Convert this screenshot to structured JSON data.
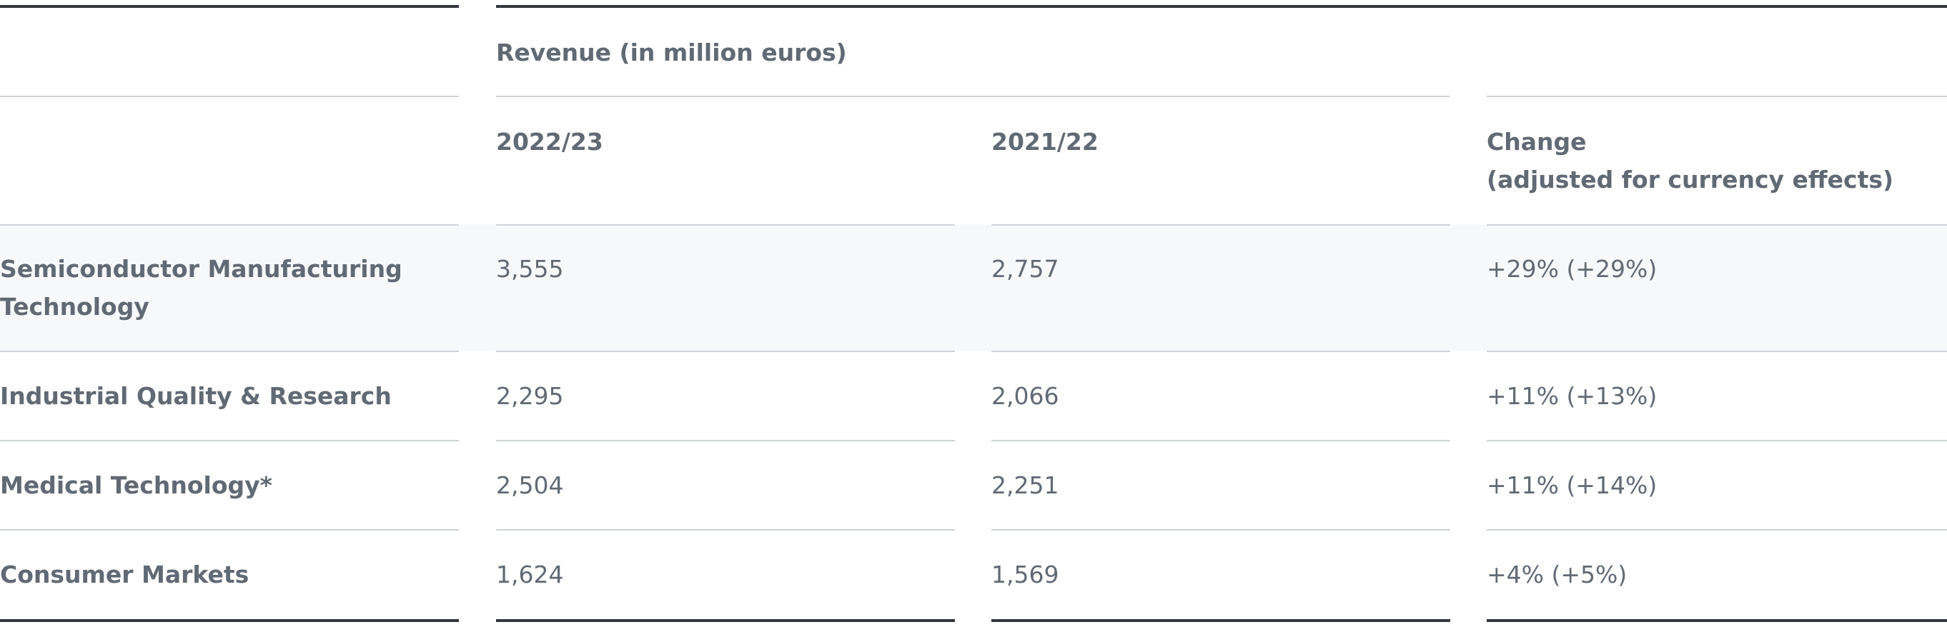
{
  "table": {
    "group_header": "Revenue (in million euros)",
    "columns": {
      "label": "",
      "current": "2022/23",
      "previous": "2021/22",
      "change_line1": "Change",
      "change_line2": "(adjusted for currency effects)"
    },
    "rows": [
      {
        "label_line1": "Semiconductor Manufacturing",
        "label_line2": "Technology",
        "current": "3,555",
        "previous": "2,757",
        "change": "+29% (+29%)"
      },
      {
        "label_line1": "Industrial Quality & Research",
        "current": "2,295",
        "previous": "2,066",
        "change": "+11% (+13%)"
      },
      {
        "label_line1": "Medical Technology*",
        "current": "2,504",
        "previous": "2,251",
        "change": "+11% (+14%)"
      },
      {
        "label_line1": "Consumer Markets",
        "current": "1,624",
        "previous": "1,569",
        "change": "+4% (+5%)"
      }
    ]
  },
  "colors": {
    "text": "#616a74",
    "rule_thick": "#32373d",
    "rule_thin": "#cfd3d8",
    "highlight_row": "#f7f8fa"
  }
}
